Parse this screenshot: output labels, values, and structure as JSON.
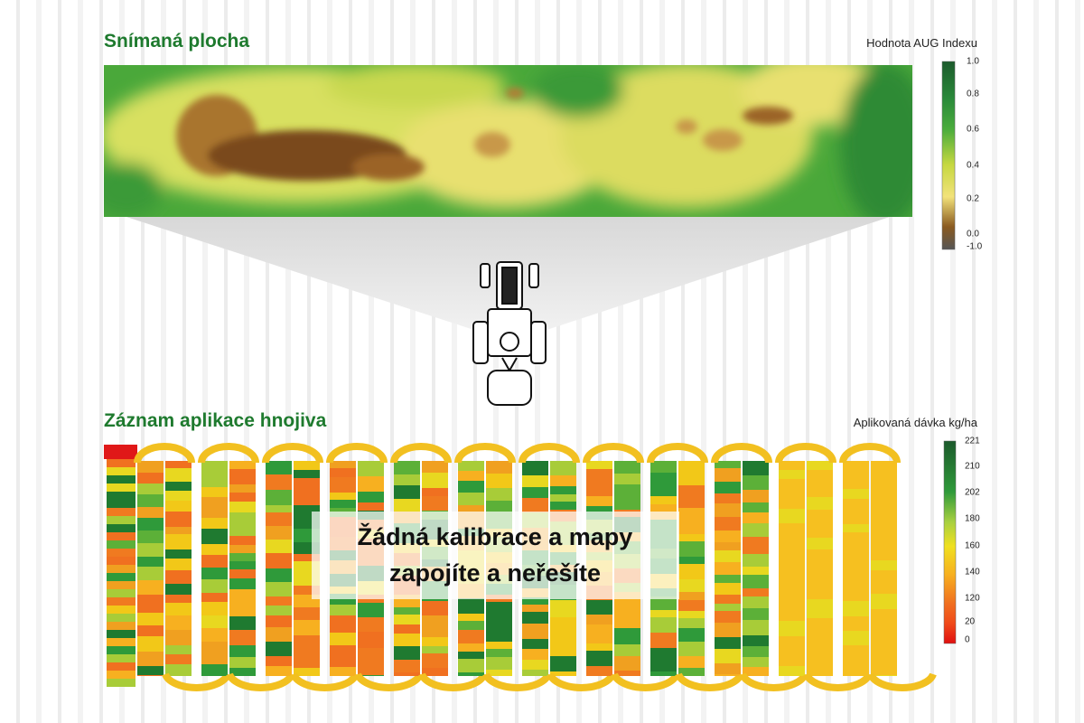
{
  "top": {
    "title": "Snímaná plocha",
    "legend": {
      "title": "Hodnota AUG Indexu",
      "ticks": [
        "1.0",
        "0.8",
        "0.6",
        "0.4",
        "0.2",
        "0.0",
        "-1.0"
      ]
    }
  },
  "bottom": {
    "title": "Záznam aplikace hnojiva",
    "legend": {
      "title": "Aplikovaná dávka kg/ha",
      "ticks": [
        "221",
        "210",
        "202",
        "180",
        "160",
        "140",
        "120",
        "20",
        "0"
      ]
    }
  },
  "overlay": {
    "lines": [
      "Žádná kalibrace a mapy",
      "zapojíte a neřešíte"
    ]
  }
}
